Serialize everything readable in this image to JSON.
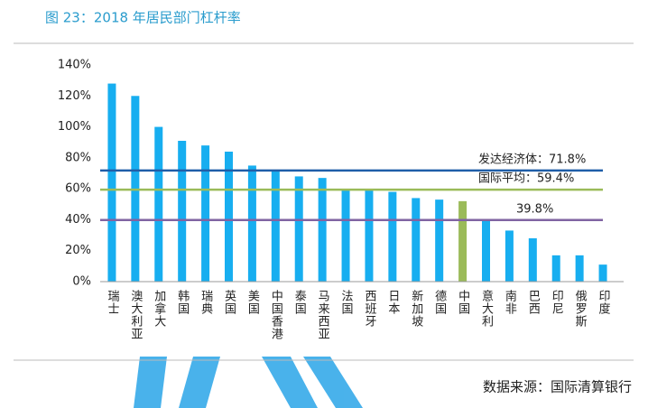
{
  "chart_data": {
    "type": "bar",
    "title": "图 23：2018 年居民部门杠杆率",
    "source": "数据来源：国际清算银行",
    "categories": [
      "瑞士",
      "澳大利亚",
      "加拿大",
      "韩国",
      "瑞典",
      "英国",
      "美国",
      "中国香港",
      "泰国",
      "马来西亚",
      "法国",
      "西班牙",
      "日本",
      "新加坡",
      "德国",
      "中国",
      "意大利",
      "南非",
      "巴西",
      "印尼",
      "俄罗斯",
      "印度"
    ],
    "values": [
      128,
      120,
      100,
      91,
      88,
      84,
      75,
      72,
      68,
      67,
      60,
      60,
      58,
      54,
      53,
      52,
      40,
      33,
      28,
      17,
      17,
      11
    ],
    "color": "#17aef0",
    "highlight_category": "中国",
    "highlight_color": "#9bbb59",
    "ylim": [
      0,
      140
    ],
    "yticks": [
      {
        "value": 0,
        "label": "0%"
      },
      {
        "value": 20,
        "label": "20%"
      },
      {
        "value": 40,
        "label": "40%"
      },
      {
        "value": 60,
        "label": "60%"
      },
      {
        "value": 80,
        "label": "80%"
      },
      {
        "value": 100,
        "label": "100%"
      },
      {
        "value": 120,
        "label": "120%"
      },
      {
        "value": 140,
        "label": "140%"
      }
    ],
    "reference_lines": [
      {
        "value": 71.8,
        "label": "发达经济体：71.8%",
        "color": "#1f5ea8"
      },
      {
        "value": 59.4,
        "label": "国际平均：59.4%",
        "color": "#9bbb59"
      },
      {
        "value": 39.8,
        "label": "39.8%",
        "color": "#8064a2"
      }
    ]
  }
}
